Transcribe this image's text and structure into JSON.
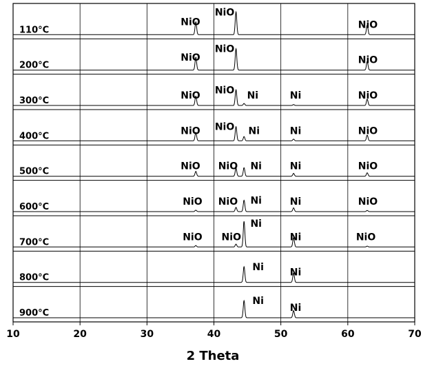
{
  "chart_data": {
    "type": "line",
    "xlabel": "2 Theta",
    "xlim": [
      10,
      70
    ],
    "x_ticks": [
      10,
      20,
      30,
      40,
      50,
      60,
      70
    ],
    "grid": "vertical",
    "peak_positions": {
      "NiO_111": 37.3,
      "NiO_200": 43.3,
      "Ni_111": 44.5,
      "Ni_200": 51.9,
      "NiO_220": 62.9
    },
    "panels": [
      {
        "label": "110°C",
        "peaks": [
          {
            "x": 37.3,
            "height": 0.45
          },
          {
            "x": 43.3,
            "height": 0.8
          },
          {
            "x": 62.9,
            "height": 0.33
          }
        ],
        "peak_labels": [
          {
            "text": "NiO",
            "x": 36.5,
            "ref": "NiO_111"
          },
          {
            "text": "NiO",
            "x": 41.6,
            "ref": "NiO_200"
          },
          {
            "text": "NiO",
            "x": 63.0,
            "ref": "NiO_220"
          }
        ]
      },
      {
        "label": "200°C",
        "peaks": [
          {
            "x": 37.3,
            "height": 0.45
          },
          {
            "x": 43.3,
            "height": 0.75
          },
          {
            "x": 62.9,
            "height": 0.3
          }
        ],
        "peak_labels": [
          {
            "text": "NiO",
            "x": 36.5,
            "ref": "NiO_111"
          },
          {
            "text": "NiO",
            "x": 41.6,
            "ref": "NiO_200"
          },
          {
            "text": "NiO",
            "x": 63.0,
            "ref": "NiO_220"
          }
        ]
      },
      {
        "label": "300°C",
        "peaks": [
          {
            "x": 37.3,
            "height": 0.33
          },
          {
            "x": 43.3,
            "height": 0.55
          },
          {
            "x": 44.5,
            "height": 0.07
          },
          {
            "x": 51.9,
            "height": 0.03
          },
          {
            "x": 62.9,
            "height": 0.22
          }
        ],
        "peak_labels": [
          {
            "text": "NiO",
            "x": 36.5,
            "ref": "NiO_111"
          },
          {
            "text": "NiO",
            "x": 41.6,
            "ref": "NiO_200"
          },
          {
            "text": "Ni",
            "x": 45.8,
            "ref": "Ni_111"
          },
          {
            "text": "Ni",
            "x": 52.2,
            "ref": "Ni_200"
          },
          {
            "text": "NiO",
            "x": 63.0,
            "ref": "NiO_220"
          }
        ]
      },
      {
        "label": "400°C",
        "peaks": [
          {
            "x": 37.3,
            "height": 0.3
          },
          {
            "x": 43.3,
            "height": 0.5
          },
          {
            "x": 44.5,
            "height": 0.15
          },
          {
            "x": 51.9,
            "height": 0.06
          },
          {
            "x": 62.9,
            "height": 0.2
          }
        ],
        "peak_labels": [
          {
            "text": "NiO",
            "x": 36.5,
            "ref": "NiO_111"
          },
          {
            "text": "NiO",
            "x": 41.6,
            "ref": "NiO_200"
          },
          {
            "text": "Ni",
            "x": 46.0,
            "ref": "Ni_111"
          },
          {
            "text": "Ni",
            "x": 52.2,
            "ref": "Ni_200"
          },
          {
            "text": "NiO",
            "x": 63.0,
            "ref": "NiO_220"
          }
        ]
      },
      {
        "label": "500°C",
        "peaks": [
          {
            "x": 37.3,
            "height": 0.17
          },
          {
            "x": 43.3,
            "height": 0.28
          },
          {
            "x": 44.5,
            "height": 0.3
          },
          {
            "x": 51.9,
            "height": 0.1
          },
          {
            "x": 62.9,
            "height": 0.12
          }
        ],
        "peak_labels": [
          {
            "text": "NiO",
            "x": 36.5,
            "ref": "NiO_111"
          },
          {
            "text": "NiO",
            "x": 42.1,
            "ref": "NiO_200"
          },
          {
            "text": "Ni",
            "x": 46.3,
            "ref": "Ni_111"
          },
          {
            "text": "Ni",
            "x": 52.2,
            "ref": "Ni_200"
          },
          {
            "text": "NiO",
            "x": 63.0,
            "ref": "NiO_220"
          }
        ]
      },
      {
        "label": "600°C",
        "peaks": [
          {
            "x": 37.3,
            "height": 0.05
          },
          {
            "x": 43.3,
            "height": 0.15
          },
          {
            "x": 44.5,
            "height": 0.4
          },
          {
            "x": 51.9,
            "height": 0.13
          },
          {
            "x": 62.9,
            "height": 0.04
          }
        ],
        "peak_labels": [
          {
            "text": "NiO",
            "x": 36.8,
            "ref": "NiO_111"
          },
          {
            "text": "NiO",
            "x": 42.1,
            "ref": "NiO_200"
          },
          {
            "text": "Ni",
            "x": 46.3,
            "ref": "Ni_111"
          },
          {
            "text": "Ni",
            "x": 52.2,
            "ref": "Ni_200"
          },
          {
            "text": "NiO",
            "x": 63.0,
            "ref": "NiO_220"
          }
        ]
      },
      {
        "label": "700°C",
        "peaks": [
          {
            "x": 37.3,
            "height": 0.05
          },
          {
            "x": 43.3,
            "height": 0.1
          },
          {
            "x": 44.5,
            "height": 0.9
          },
          {
            "x": 51.9,
            "height": 0.33
          },
          {
            "x": 62.9,
            "height": 0.03
          }
        ],
        "peak_labels": [
          {
            "text": "NiO",
            "x": 36.8,
            "ref": "NiO_111"
          },
          {
            "text": "NiO",
            "x": 42.6,
            "ref": "NiO_200"
          },
          {
            "text": "Ni",
            "x": 46.3,
            "ref": "Ni_111"
          },
          {
            "text": "Ni",
            "x": 52.2,
            "ref": "Ni_200"
          },
          {
            "text": "NiO",
            "x": 62.7,
            "ref": "NiO_220"
          }
        ]
      },
      {
        "label": "800°C",
        "peaks": [
          {
            "x": 44.5,
            "height": 0.55
          },
          {
            "x": 51.9,
            "height": 0.33
          }
        ],
        "peak_labels": [
          {
            "text": "Ni",
            "x": 46.6,
            "ref": "Ni_111"
          },
          {
            "text": "Ni",
            "x": 52.2,
            "ref": "Ni_200"
          }
        ]
      },
      {
        "label": "900°C",
        "peaks": [
          {
            "x": 44.5,
            "height": 0.6
          },
          {
            "x": 51.9,
            "height": 0.25
          }
        ],
        "peak_labels": [
          {
            "text": "Ni",
            "x": 46.6,
            "ref": "Ni_111"
          },
          {
            "text": "Ni",
            "x": 52.2,
            "ref": "Ni_200"
          }
        ]
      }
    ]
  }
}
